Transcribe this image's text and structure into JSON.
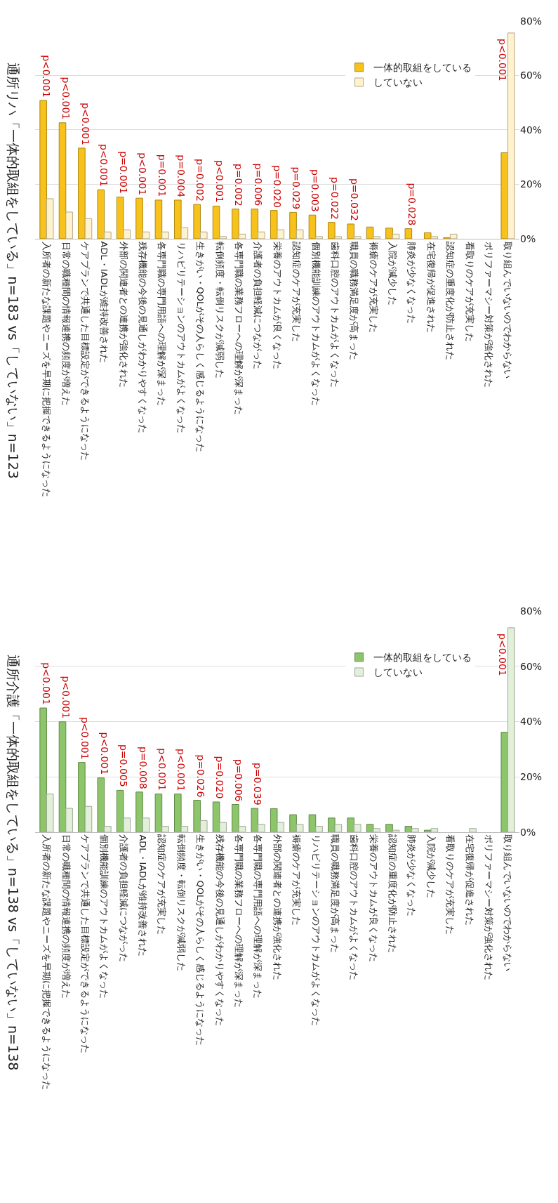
{
  "chart_data": [
    {
      "type": "bar",
      "title": "通所リハ「一体的取組をしている」n=183 vs「していない」n=123",
      "categories": [
        "入所者の新たな課題やニーズを早期に把握できるようになった",
        "日常の職種間の情報連携の頻度が増えた",
        "ケアプランで共通した目標設定ができるようになった",
        "ADL・IADLが維持改善された",
        "外部の関連者との連携が強化された",
        "残存機能の今後の見通しがわかりやすくなった",
        "各専門職の専門用語への理解が深まった",
        "リハビリテーションのアウトカムがよくなった",
        "生きがい・QOLがその人らしく感じるようになった",
        "転倒頻度・転倒リスクが減弱した",
        "各専門職の業務フローへの理解が深まった",
        "介護者の負担軽減につながった",
        "栄養のアウトカムが良くなった",
        "認知症のケアが充実した",
        "個別機能訓練のアウトカムがよくなった",
        "歯科口腔のアウトカムがよくなった",
        "職員の職務満足度が高まった",
        "褥瘡のケアが充実した",
        "入院が減少した",
        "肺炎が少なくなった",
        "在宅復帰が促進された",
        "認知症の重度化が防止された",
        "看取りのケアが充実した",
        "ポリファーマシー対策が強化された",
        "取り組んでいないのでわからない"
      ],
      "series": [
        {
          "name": "一体的取組をしている",
          "color": "#f7c21c",
          "values": [
            50.8,
            42.6,
            33.3,
            18.0,
            15.3,
            14.9,
            14.2,
            14.2,
            12.6,
            12.0,
            10.9,
            10.9,
            10.4,
            9.7,
            8.7,
            6.0,
            5.4,
            4.3,
            3.9,
            3.7,
            2.2,
            0.4,
            0,
            0,
            31.6
          ]
        },
        {
          "name": "していない",
          "color": "#fff2cc",
          "values": [
            14.7,
            9.8,
            7.4,
            2.5,
            3.3,
            2.5,
            2.5,
            4.1,
            2.5,
            0.8,
            1.7,
            2.5,
            3.3,
            3.3,
            0.8,
            0.8,
            0.8,
            0.8,
            1.7,
            0,
            0.8,
            1.7,
            0,
            0,
            75.6
          ]
        }
      ],
      "ylim": [
        0,
        80
      ],
      "yticks": [
        {
          "value": 0,
          "label": "0%"
        },
        {
          "value": 20,
          "label": "20%"
        },
        {
          "value": 40,
          "label": "40%"
        },
        {
          "value": 60,
          "label": "60%"
        },
        {
          "value": 80,
          "label": "80%"
        }
      ],
      "grid": "y",
      "legend": "top right",
      "annotations": [
        {
          "text": "p<0.001",
          "x": "入所者の新たな課題やニーズを早期に把握できるようになった",
          "y": 50.8
        },
        {
          "text": "p<0.001",
          "x": "日常の職種間の情報連携の頻度が増えた",
          "y": 42.6
        },
        {
          "text": "p<0.001",
          "x": "ケアプランで共通した目標設定ができるようになった",
          "y": 33.3
        },
        {
          "text": "p<0.001",
          "x": "ADL・IADLが維持改善された",
          "y": 18.0
        },
        {
          "text": "p=0.001",
          "x": "外部の関連者との連携が強化された",
          "y": 15.3
        },
        {
          "text": "p<0.001",
          "x": "残存機能の今後の見通しがわかりやすくなった",
          "y": 14.9
        },
        {
          "text": "p=0.001",
          "x": "各専門職の専門用語への理解が深まった",
          "y": 14.2
        },
        {
          "text": "p=0.004",
          "x": "リハビリテーションのアウトカムがよくなった",
          "y": 14.2
        },
        {
          "text": "p=0.002",
          "x": "生きがい・QOLがその人らしく感じるようになった",
          "y": 12.6
        },
        {
          "text": "p<0.001",
          "x": "転倒頻度・転倒リスクが減弱した",
          "y": 12.0
        },
        {
          "text": "p=0.002",
          "x": "各専門職の業務フローへの理解が深まった",
          "y": 10.9
        },
        {
          "text": "p=0.006",
          "x": "介護者の負担軽減につながった",
          "y": 10.9
        },
        {
          "text": "p=0.020",
          "x": "栄養のアウトカムが良くなった",
          "y": 10.4
        },
        {
          "text": "p=0.029",
          "x": "認知症のケアが充実した",
          "y": 9.7
        },
        {
          "text": "p=0.003",
          "x": "個別機能訓練のアウトカムがよくなった",
          "y": 8.7
        },
        {
          "text": "p=0.022",
          "x": "歯科口腔のアウトカムがよくなった",
          "y": 6.0
        },
        {
          "text": "p=0.032",
          "x": "職員の職務満足度が高まった",
          "y": 5.4
        },
        {
          "text": "p=0.028",
          "x": "肺炎が少なくなった",
          "y": 3.7
        },
        {
          "text": "p<0.001",
          "x": "取り組んでいないのでわからない",
          "y": 75.6
        }
      ]
    },
    {
      "type": "bar",
      "title": "通所介護「一体的取組をしている」n=138 vs「していない」n=138",
      "categories": [
        "入所者の新たな課題やニーズを早期に把握できるようになった",
        "日常の職種間の情報連携の頻度が増えた",
        "ケアプランで共通した目標設定ができるようになった",
        "個別機能訓練のアウトカムがよくなった",
        "介護者の負担軽減につながった",
        "ADL・IADLが維持改善された",
        "認知症のケアが充実した",
        "転倒頻度・転倒リスクが減弱した",
        "生きがい・QOLがその人らしく感じるようになった",
        "残存機能の今後の見通しがわかりやすくなった",
        "各専門職の業務フローへの理解が深まった",
        "各専門職の専門用語への理解が深まった",
        "外部の関連者との連携が強化された",
        "褥瘡のケアが充実した",
        "リハビリテーションのアウトカムがよくなった",
        "職員の職務満足度が高まった",
        "歯科口腔のアウトカムがよくなった",
        "栄養のアウトカムが良くなった",
        "認知症の重度化が防止された",
        "肺炎が少なくなった",
        "入院が減少した",
        "看取りのケアが充実した",
        "在宅復帰が促進された",
        "ポリファーマシー対策が強化された",
        "取り組んでいないのでわからない"
      ],
      "series": [
        {
          "name": "一体的取組をしている",
          "color": "#8cc56a",
          "values": [
            44.9,
            39.9,
            25.2,
            19.6,
            15.1,
            14.5,
            13.8,
            13.8,
            11.5,
            10.9,
            10.0,
            8.6,
            8.5,
            6.3,
            6.3,
            5.1,
            5.1,
            2.8,
            2.8,
            2.1,
            0.7,
            0,
            0,
            0,
            36.1
          ]
        },
        {
          "name": "していない",
          "color": "#e2efd9",
          "values": [
            13.8,
            8.6,
            9.3,
            2.1,
            5.1,
            5.1,
            2.1,
            2.1,
            4.2,
            3.5,
            2.1,
            2.8,
            3.5,
            2.8,
            2.1,
            2.8,
            2.8,
            1.3,
            0.7,
            1.3,
            1.3,
            0,
            1.3,
            0,
            73.9
          ]
        }
      ],
      "ylim": [
        0,
        80
      ],
      "yticks": [
        {
          "value": 0,
          "label": "0%"
        },
        {
          "value": 20,
          "label": "20%"
        },
        {
          "value": 40,
          "label": "40%"
        },
        {
          "value": 60,
          "label": "60%"
        },
        {
          "value": 80,
          "label": "80%"
        }
      ],
      "grid": "y",
      "legend": "top right",
      "annotations": [
        {
          "text": "p<0.001",
          "x": "入所者の新たな課題やニーズを早期に把握できるようになった",
          "y": 44.9
        },
        {
          "text": "p<0.001",
          "x": "日常の職種間の情報連携の頻度が増えた",
          "y": 39.9
        },
        {
          "text": "p<0.001",
          "x": "ケアプランで共通した目標設定ができるようになった",
          "y": 25.2
        },
        {
          "text": "p<0.001",
          "x": "個別機能訓練のアウトカムがよくなった",
          "y": 19.6
        },
        {
          "text": "p=0.005",
          "x": "介護者の負担軽減につながった",
          "y": 15.1
        },
        {
          "text": "p=0.008",
          "x": "ADL・IADLが維持改善された",
          "y": 14.5
        },
        {
          "text": "p<0.001",
          "x": "認知症のケアが充実した",
          "y": 13.8
        },
        {
          "text": "p<0.001",
          "x": "転倒頻度・転倒リスクが減弱した",
          "y": 13.8
        },
        {
          "text": "p=0.026",
          "x": "生きがい・QOLがその人らしく感じるようになった",
          "y": 11.5
        },
        {
          "text": "p=0.020",
          "x": "残存機能の今後の見通しがわかりやすくなった",
          "y": 10.9
        },
        {
          "text": "p=0.006",
          "x": "各専門職の業務フローへの理解が深まった",
          "y": 10.0
        },
        {
          "text": "p=0.039",
          "x": "各専門職の専門用語への理解が深まった",
          "y": 8.6
        },
        {
          "text": "p<0.001",
          "x": "取り組んでいないのでわからない",
          "y": 73.9
        }
      ]
    }
  ]
}
